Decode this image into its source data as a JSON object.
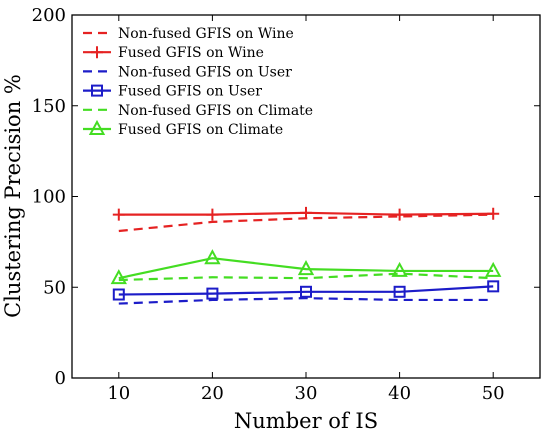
{
  "chart_data": {
    "type": "line",
    "xlabel": "Number of IS",
    "ylabel": "Clustering Precision %",
    "xlim": [
      5,
      55
    ],
    "ylim": [
      0,
      200
    ],
    "x_ticks": [
      10,
      20,
      30,
      40,
      50
    ],
    "y_ticks": [
      0,
      50,
      100,
      150,
      200
    ],
    "grid": false,
    "legend_position": "top-left",
    "x": [
      10,
      20,
      30,
      40,
      50
    ],
    "series": [
      {
        "name": "Non-fused GFIS on Wine",
        "values": [
          81,
          86,
          88,
          89,
          90
        ],
        "color": "#e52222",
        "dash": true,
        "marker": "none"
      },
      {
        "name": "Fused GFIS on Wine",
        "values": [
          90,
          90,
          91,
          90,
          90.5
        ],
        "color": "#e52222",
        "dash": false,
        "marker": "plus"
      },
      {
        "name": "Non-fused GFIS on User",
        "values": [
          41,
          43,
          44,
          43,
          43
        ],
        "color": "#1c1cc8",
        "dash": true,
        "marker": "none"
      },
      {
        "name": "Fused GFIS on User",
        "values": [
          46,
          46.5,
          47.5,
          47.5,
          50.5
        ],
        "color": "#1c1cc8",
        "dash": false,
        "marker": "square"
      },
      {
        "name": "Non-fused GFIS on Climate",
        "values": [
          54,
          55.5,
          55,
          57.5,
          55
        ],
        "color": "#44dd22",
        "dash": true,
        "marker": "none"
      },
      {
        "name": "Fused GFIS on Climate",
        "values": [
          55,
          66,
          60,
          59,
          59
        ],
        "color": "#44dd22",
        "dash": false,
        "marker": "triangle"
      }
    ]
  }
}
